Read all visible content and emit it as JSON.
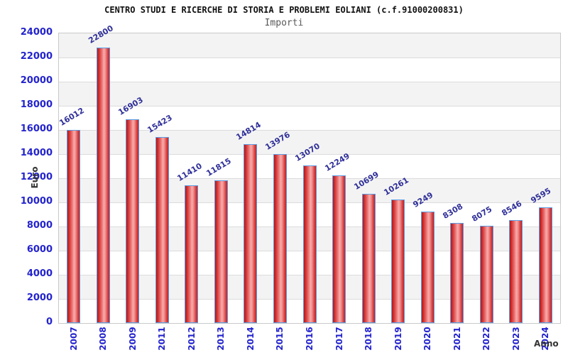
{
  "header": {
    "title": "CENTRO STUDI E RICERCHE DI STORIA E PROBLEMI EOLIANI (c.f.91000200831)",
    "subtitle": "Importi"
  },
  "chart_data": {
    "type": "bar",
    "title": "Importi",
    "categories": [
      "2007",
      "2008",
      "2009",
      "2011",
      "2012",
      "2013",
      "2014",
      "2015",
      "2016",
      "2017",
      "2018",
      "2019",
      "2020",
      "2021",
      "2022",
      "2023",
      "2024"
    ],
    "values": [
      16012,
      22800,
      16903,
      15423,
      11410,
      11815,
      14814,
      13976,
      13070,
      12249,
      10699,
      10261,
      9249,
      8308,
      8075,
      8546,
      9595
    ],
    "xlabel": "Anno",
    "ylabel": "Euro",
    "ylim": [
      0,
      24000
    ],
    "yticks": [
      0,
      2000,
      4000,
      6000,
      8000,
      10000,
      12000,
      14000,
      16000,
      18000,
      20000,
      22000,
      24000
    ],
    "legend": "none",
    "grid": "horizontal alternating bands with gridlines every 2000",
    "colors": {
      "bar_border": "#5b9ee6",
      "bar_dark_red": "#c22222",
      "bar_light_red": "#f8abab",
      "value_label": "#30309a",
      "tick_label": "#2323cd",
      "band_gray": "#f3f3f3",
      "band_white": "#ffffff",
      "gridline": "#dcdcdc",
      "title_color": "#111111",
      "subtitle_color": "#5a5a5a",
      "axis_title_color": "#333333"
    }
  }
}
